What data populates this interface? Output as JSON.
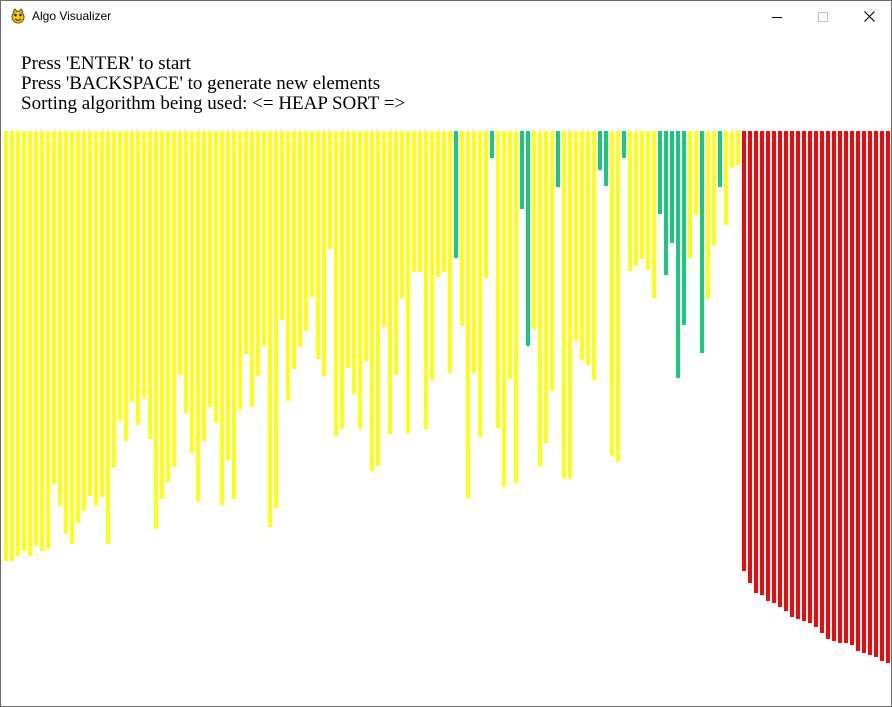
{
  "window": {
    "title": "Algo Visualizer",
    "icon": "pygame-snake-icon",
    "controls": [
      "minimize-icon",
      "maximize-icon",
      "close-icon"
    ]
  },
  "instructions": {
    "start": "Press 'ENTER' to start",
    "regenerate": "Press 'BACKSPACE' to generate new elements",
    "algorithm": "Sorting algorithm being used: <= HEAP SORT =>"
  },
  "colors": {
    "unsorted": "#ffff19",
    "active": "#19c878",
    "sorted": "#ee0a0a",
    "background": "#ffffff"
  },
  "elements": {
    "unsorted_values": [
      430,
      430,
      425,
      420,
      425,
      415,
      420,
      418,
      353,
      375,
      403,
      413,
      392,
      380,
      365,
      375,
      366,
      413,
      337,
      290,
      310,
      271,
      294,
      267,
      308,
      398,
      368,
      351,
      336,
      244,
      282,
      322,
      371,
      310,
      276,
      292,
      374,
      329,
      368,
      279,
      223,
      276,
      245,
      215,
      396,
      377,
      189,
      270,
      238,
      216,
      200,
      166,
      228,
      245,
      118,
      305,
      298,
      237,
      263,
      298,
      230,
      340,
      335,
      196,
      303,
      244,
      167,
      302,
      141,
      141,
      298,
      249,
      146,
      141,
      242,
      218,
      195,
      367,
      242,
      306,
      147,
      334,
      297,
      356,
      248,
      352,
      161,
      140,
      198,
      335,
      312,
      260,
      291,
      347,
      348,
      210,
      229,
      234,
      249,
      276,
      243,
      325,
      331,
      303,
      140,
      135,
      128,
      139,
      167,
      52,
      97,
      202,
      116,
      161,
      127,
      84,
      86,
      168,
      115,
      114,
      94,
      37,
      34
    ],
    "active_indices": [
      75,
      81,
      86,
      87,
      92,
      99,
      100,
      103,
      109,
      110,
      111,
      112,
      113,
      116,
      119
    ],
    "active_values": [
      127,
      27,
      78,
      215,
      56,
      39,
      55,
      27,
      83,
      144,
      112,
      247,
      194,
      222,
      56
    ],
    "sorted_values": [
      440,
      452,
      462,
      464,
      470,
      472,
      476,
      480,
      486,
      488,
      490,
      492,
      496,
      502,
      508,
      510,
      512,
      512,
      514,
      520,
      522,
      524,
      526,
      530,
      532,
      540
    ]
  }
}
